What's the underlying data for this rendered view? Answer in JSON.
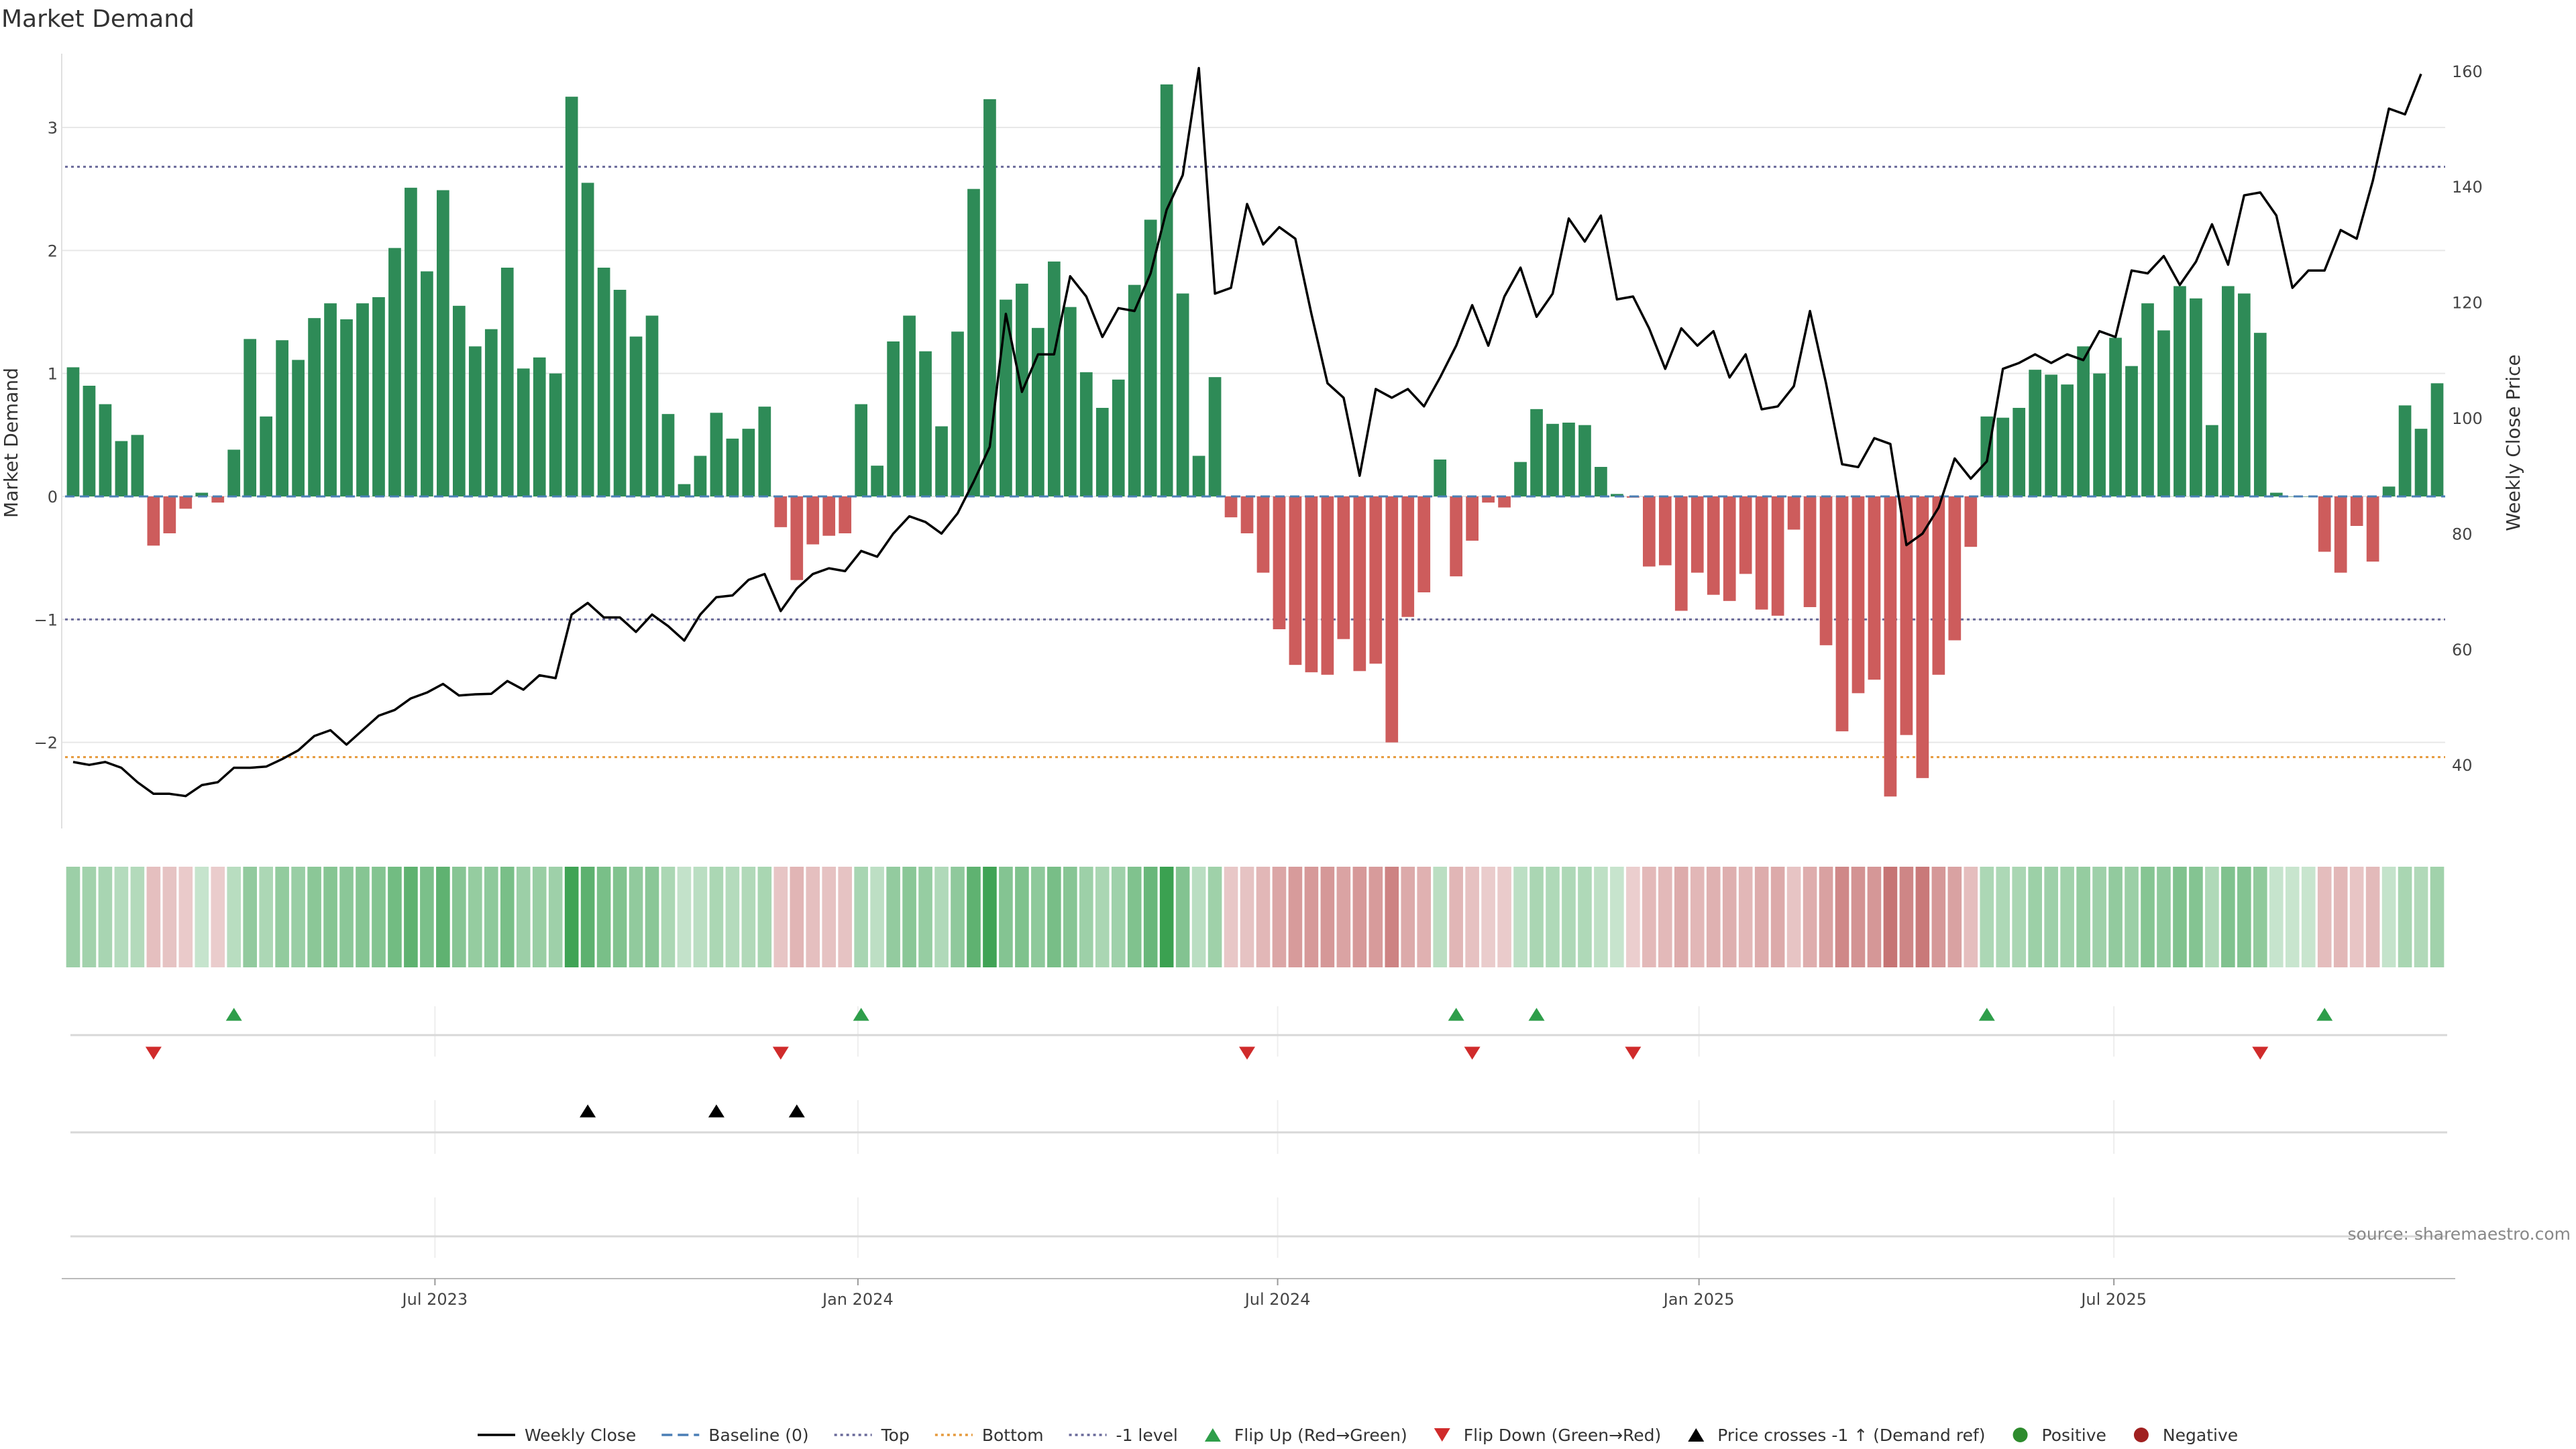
{
  "chart_data": {
    "type": "bar",
    "title": "Market Demand",
    "ylabel": "Market Demand",
    "y2label": "Weekly Close Price",
    "ylim": [
      -2.7,
      3.6
    ],
    "y2lim": [
      29,
      163
    ],
    "yticks": [
      3,
      2,
      1,
      0,
      -1,
      -2
    ],
    "ytick_labels": [
      "3",
      "2",
      "1",
      "0",
      "−1",
      "−2"
    ],
    "y2ticks": [
      160,
      140,
      120,
      100,
      80,
      60,
      40
    ],
    "y2tick_labels": [
      "160",
      "140",
      "120",
      "100",
      "80",
      "60",
      "40"
    ],
    "x_start": "2023-02-13",
    "x_step_days": 7,
    "x_ticks": [
      {
        "label": "Jul 2023",
        "week": 22.5
      },
      {
        "label": "Jan 2024",
        "week": 48.8
      },
      {
        "label": "Jul 2024",
        "week": 74.9
      },
      {
        "label": "Jan 2025",
        "week": 101.1
      },
      {
        "label": "Jul 2025",
        "week": 126.9
      }
    ],
    "reference_lines": {
      "top": 2.68,
      "bottom": -2.12,
      "minus_one": -1,
      "baseline": 0
    },
    "demand": [
      1.05,
      0.9,
      0.75,
      0.45,
      0.5,
      -0.4,
      -0.3,
      -0.1,
      0.03,
      -0.05,
      0.38,
      1.28,
      0.65,
      1.27,
      1.11,
      1.45,
      1.57,
      1.44,
      1.57,
      1.62,
      2.02,
      2.51,
      1.83,
      2.49,
      1.55,
      1.22,
      1.36,
      1.86,
      1.04,
      1.13,
      1.0,
      3.25,
      2.55,
      1.86,
      1.68,
      1.3,
      1.47,
      0.67,
      0.1,
      0.33,
      0.68,
      0.47,
      0.55,
      0.73,
      -0.25,
      -0.68,
      -0.39,
      -0.32,
      -0.3,
      0.75,
      0.25,
      1.26,
      1.47,
      1.18,
      0.57,
      1.34,
      2.5,
      3.23,
      1.6,
      1.73,
      1.37,
      1.91,
      1.54,
      1.01,
      0.72,
      0.95,
      1.72,
      2.25,
      3.35,
      1.65,
      0.33,
      0.97,
      -0.17,
      -0.3,
      -0.62,
      -1.08,
      -1.37,
      -1.43,
      -1.45,
      -1.16,
      -1.42,
      -1.36,
      -2.0,
      -0.98,
      -0.78,
      0.3,
      -0.65,
      -0.36,
      -0.05,
      -0.09,
      0.28,
      0.71,
      0.59,
      0.6,
      0.58,
      0.24,
      0.02,
      -0.01,
      -0.57,
      -0.56,
      -0.93,
      -0.62,
      -0.8,
      -0.85,
      -0.63,
      -0.92,
      -0.97,
      -0.27,
      -0.9,
      -1.21,
      -1.91,
      -1.6,
      -1.49,
      -2.44,
      -1.94,
      -2.29,
      -1.45,
      -1.17,
      -0.41,
      0.65,
      0.64,
      0.72,
      1.03,
      0.99,
      0.91,
      1.22,
      1.0,
      1.29,
      1.06,
      1.57,
      1.35,
      1.71,
      1.61,
      0.58,
      1.71,
      1.65,
      1.33,
      0.03,
      0,
      0,
      -0.45,
      -0.62,
      -0.24,
      -0.53,
      0.08,
      0.74,
      0.55,
      0.92
    ],
    "price": [
      40.5,
      40,
      40.5,
      39.5,
      37,
      35,
      35,
      34.6,
      36.5,
      37,
      39.5,
      39.5,
      39.7,
      41,
      42.5,
      45,
      46,
      43.5,
      46,
      48.5,
      49.5,
      51.5,
      52.5,
      54,
      52,
      52.2,
      52.3,
      54.5,
      53,
      55.5,
      55,
      66,
      68,
      65.5,
      65.5,
      63,
      66,
      64,
      61.5,
      66,
      69,
      69.3,
      72,
      73,
      66.6,
      70.5,
      73,
      74,
      73.5,
      77,
      76,
      80,
      83,
      82,
      80,
      83.5,
      89,
      95,
      118,
      104.5,
      111,
      111,
      124.5,
      121,
      114,
      119,
      118.5,
      125,
      136,
      142,
      160.5,
      121.5,
      122.5,
      137,
      130,
      133,
      131,
      118,
      106,
      103.5,
      90,
      105,
      103.5,
      105,
      102,
      107,
      112.5,
      119.5,
      112.5,
      121,
      126,
      117.5,
      121.5,
      134.5,
      130.5,
      135,
      120.5,
      121,
      115.5,
      108.5,
      115.5,
      112.5,
      115,
      107,
      111,
      101.5,
      102,
      105.5,
      118.5,
      106,
      92,
      91.5,
      96.5,
      95.5,
      78,
      80,
      84.5,
      93,
      89.5,
      92.5,
      108.5,
      109.5,
      111,
      109.5,
      111,
      110,
      115,
      114,
      125.5,
      125,
      128,
      123,
      127,
      133.5,
      126.5,
      138.5,
      139,
      135,
      122.5,
      125.5,
      125.5,
      132.5,
      131,
      141,
      153.5,
      152.5,
      159.5
    ],
    "flip_up_weeks": [
      10,
      49,
      86,
      91,
      119,
      140
    ],
    "flip_down_weeks": [
      5,
      44,
      73,
      87,
      97,
      136
    ],
    "price_cross_weeks": [
      32,
      40,
      45
    ],
    "source": "source: sharemaestro.com",
    "legend": [
      {
        "key": "weekly-close",
        "label": "Weekly Close",
        "color": "#000000",
        "type": "line"
      },
      {
        "key": "baseline",
        "label": "Baseline (0)",
        "color": "#4a7fb5",
        "type": "dashed"
      },
      {
        "key": "top",
        "label": "Top",
        "color": "#6a6a9a",
        "type": "dotted"
      },
      {
        "key": "bottom",
        "label": "Bottom",
        "color": "#e69a3c",
        "type": "dotted"
      },
      {
        "key": "minus-one",
        "label": "-1 level",
        "color": "#6a6a9a",
        "type": "dotted"
      },
      {
        "key": "flip-up",
        "label": "Flip Up (Red→Green)",
        "color": "#2e9e4a",
        "type": "tri-up"
      },
      {
        "key": "flip-down",
        "label": "Flip Down (Green→Red)",
        "color": "#d02b2b",
        "type": "tri-down"
      },
      {
        "key": "price-cross",
        "label": "Price crosses -1 ↑ (Demand ref)",
        "color": "#000000",
        "type": "tri-up"
      },
      {
        "key": "positive",
        "label": "Positive",
        "color": "#2e8b2e",
        "type": "dot"
      },
      {
        "key": "negative",
        "label": "Negative",
        "color": "#a02020",
        "type": "dot"
      }
    ],
    "colors": {
      "positive_bar": "#2e8b57",
      "negative_bar": "#cd5c5c",
      "heat_positive": "#39a04f",
      "heat_negative": "#b85050",
      "grid": "#e8e8e8"
    }
  }
}
